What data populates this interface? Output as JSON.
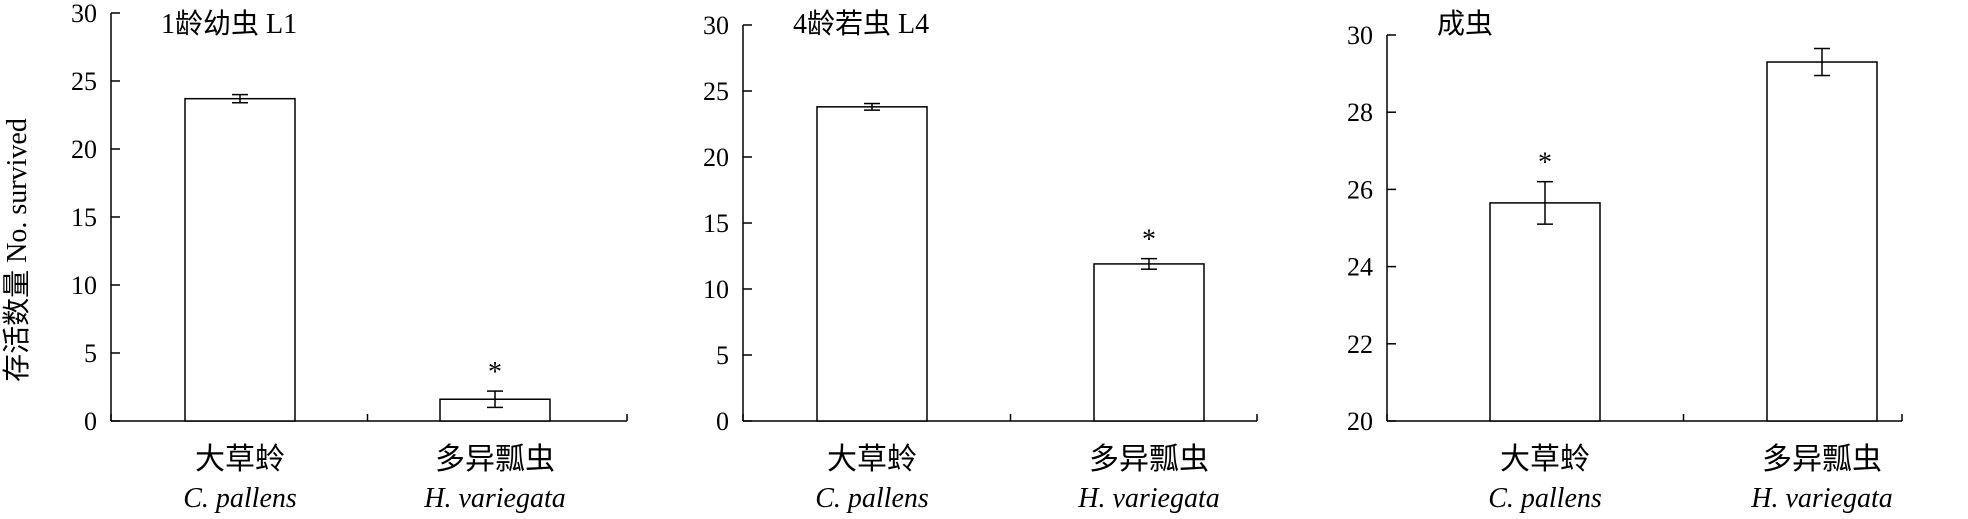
{
  "y_axis_label": "存活数量 No. survived",
  "chart_data": [
    {
      "type": "bar",
      "title": "1龄幼虫 L1",
      "categories": [
        "大草蛉",
        "多异瓢虫"
      ],
      "category_sci": [
        "C. pallens",
        "H. variegata"
      ],
      "values": [
        23.7,
        1.6
      ],
      "errors": [
        0.3,
        0.6
      ],
      "significance": [
        "",
        "*"
      ],
      "ylim": [
        0,
        30
      ],
      "yticks": [
        0,
        5,
        10,
        15,
        20,
        25,
        30
      ],
      "ylabel": "存活数量 No. survived"
    },
    {
      "type": "bar",
      "title": "4龄若虫 L4",
      "categories": [
        "大草蛉",
        "多异瓢虫"
      ],
      "category_sci": [
        "C. pallens",
        "H. variegata"
      ],
      "values": [
        23.8,
        11.9
      ],
      "errors": [
        0.25,
        0.4
      ],
      "significance": [
        "",
        "*"
      ],
      "ylim": [
        0,
        30
      ],
      "yticks": [
        0,
        5,
        10,
        15,
        20,
        25,
        30
      ]
    },
    {
      "type": "bar",
      "title": "成虫",
      "categories": [
        "大草蛉",
        "多异瓢虫"
      ],
      "category_sci": [
        "C. pallens",
        "H. variegata"
      ],
      "values": [
        25.65,
        29.3
      ],
      "errors": [
        0.55,
        0.35
      ],
      "significance": [
        "*",
        ""
      ],
      "ylim": [
        20,
        30
      ],
      "yticks": [
        20,
        22,
        24,
        26,
        28,
        30
      ]
    }
  ]
}
